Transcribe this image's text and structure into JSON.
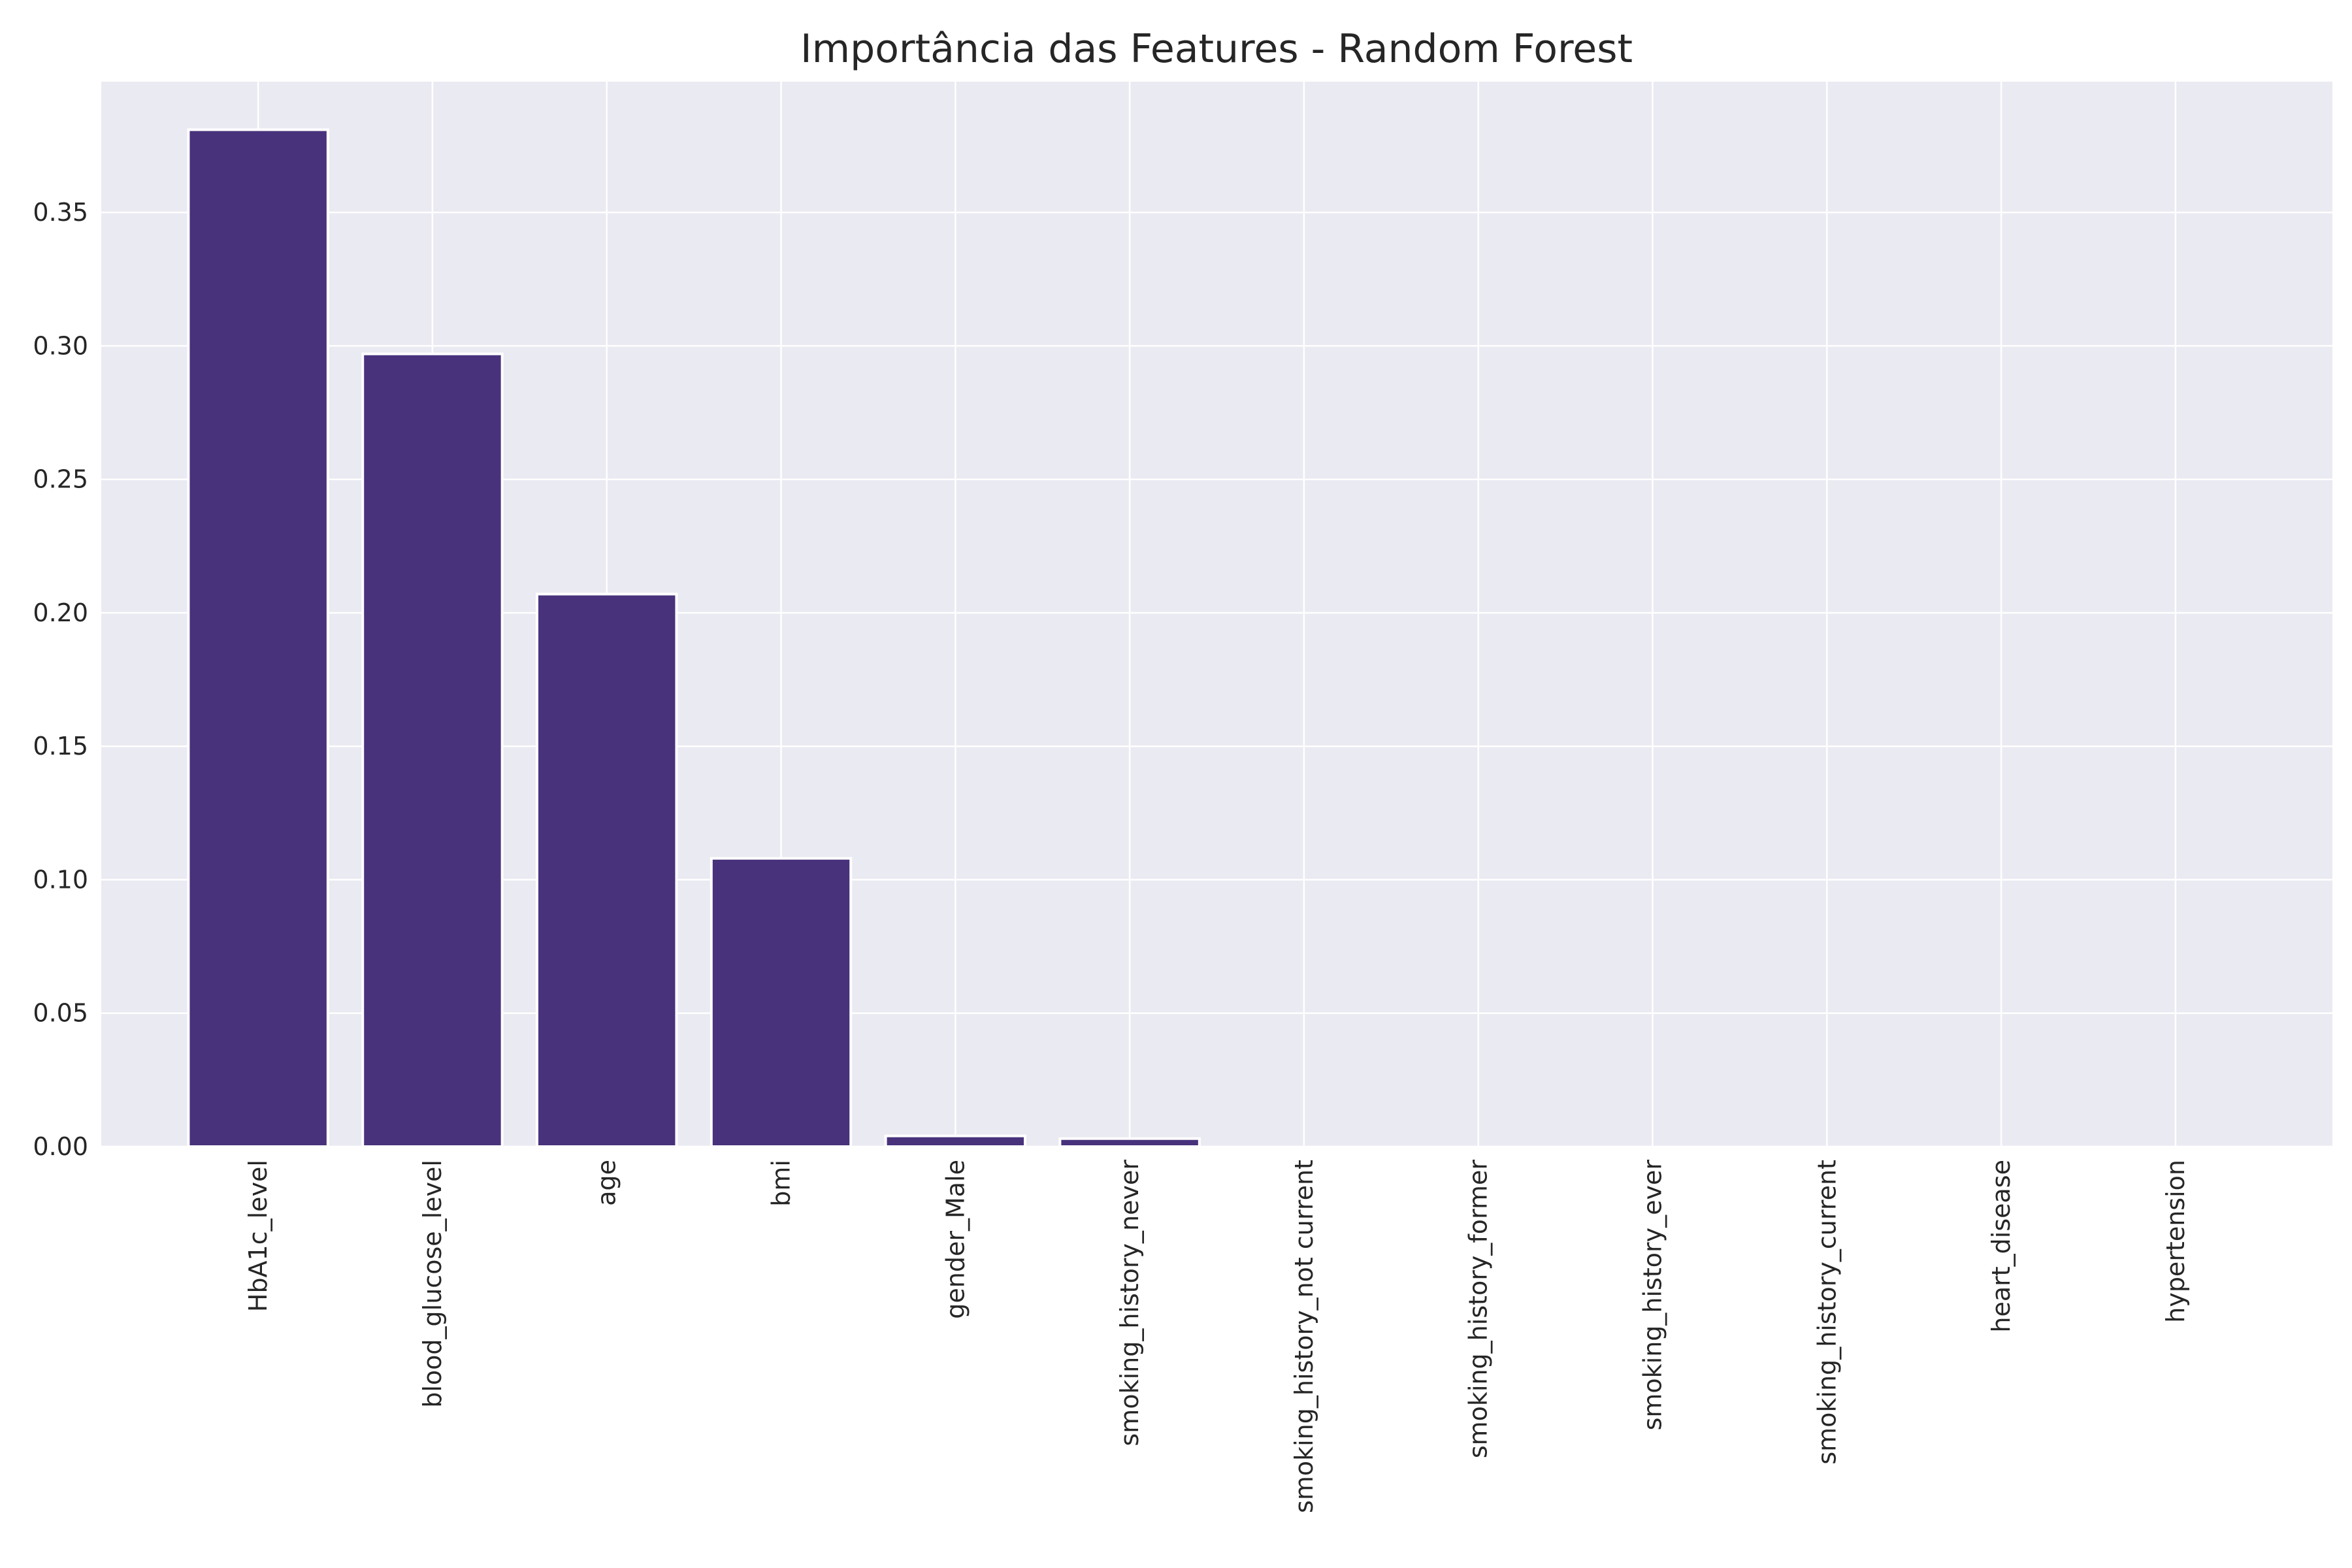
{
  "chart_data": {
    "type": "bar",
    "title": "Importância das Features - Random Forest",
    "xlabel": "",
    "ylabel": "",
    "categories": [
      "HbA1c_level",
      "blood_glucose_level",
      "age",
      "bmi",
      "gender_Male",
      "smoking_history_never",
      "smoking_history_not current",
      "smoking_history_former",
      "smoking_history_ever",
      "smoking_history_current",
      "heart_disease",
      "hypertension"
    ],
    "values": [
      0.381,
      0.297,
      0.207,
      0.108,
      0.004,
      0.003,
      0.0,
      0.0,
      0.0,
      0.0,
      0.0,
      0.0
    ],
    "ylim": [
      0,
      0.399
    ],
    "yticks": [
      "0.00",
      "0.05",
      "0.10",
      "0.15",
      "0.20",
      "0.25",
      "0.30",
      "0.35"
    ],
    "grid": true,
    "legend": "none",
    "colors": {
      "bar": "#48327c",
      "bar_edge": "#ffffff",
      "plot_bg": "#eaeaf2",
      "grid": "#ffffff"
    }
  }
}
